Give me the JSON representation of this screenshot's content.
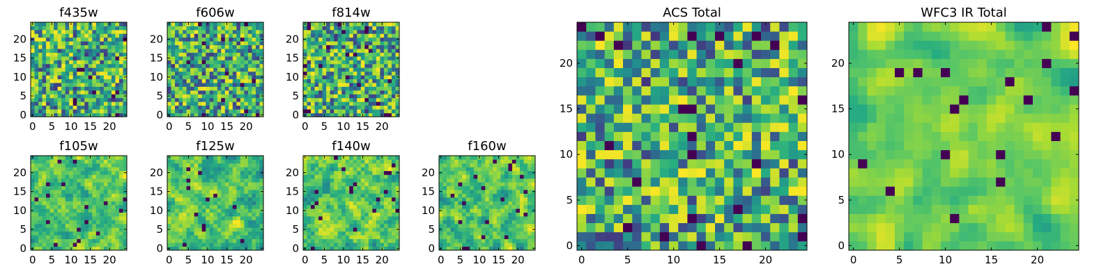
{
  "chart_data": [
    {
      "type": "heatmap",
      "title": "f435w",
      "grid_size": 25,
      "xticks": [
        0,
        5,
        10,
        15,
        20
      ],
      "yticks": [
        0,
        5,
        10,
        15,
        20
      ],
      "xlim": [
        -0.5,
        24.5
      ],
      "ylim": [
        -0.5,
        24.5
      ],
      "colormap": "viridis",
      "smoothness": 0,
      "seed": 11
    },
    {
      "type": "heatmap",
      "title": "f606w",
      "grid_size": 25,
      "xticks": [
        0,
        5,
        10,
        15,
        20
      ],
      "yticks": [
        0,
        5,
        10,
        15,
        20
      ],
      "xlim": [
        -0.5,
        24.5
      ],
      "ylim": [
        -0.5,
        24.5
      ],
      "colormap": "viridis",
      "smoothness": 0,
      "seed": 23
    },
    {
      "type": "heatmap",
      "title": "f814w",
      "grid_size": 25,
      "xticks": [
        0,
        5,
        10,
        15,
        20
      ],
      "yticks": [
        0,
        5,
        10,
        15,
        20
      ],
      "xlim": [
        -0.5,
        24.5
      ],
      "ylim": [
        -0.5,
        24.5
      ],
      "colormap": "viridis",
      "smoothness": 0,
      "seed": 37
    },
    {
      "type": "heatmap",
      "title": "f105w",
      "grid_size": 25,
      "xticks": [
        0,
        5,
        10,
        15,
        20
      ],
      "yticks": [
        0,
        5,
        10,
        15,
        20
      ],
      "xlim": [
        -0.5,
        24.5
      ],
      "ylim": [
        -0.5,
        24.5
      ],
      "colormap": "viridis",
      "smoothness": 1,
      "seed": 41
    },
    {
      "type": "heatmap",
      "title": "f125w",
      "grid_size": 25,
      "xticks": [
        0,
        5,
        10,
        15,
        20
      ],
      "yticks": [
        0,
        5,
        10,
        15,
        20
      ],
      "xlim": [
        -0.5,
        24.5
      ],
      "ylim": [
        -0.5,
        24.5
      ],
      "colormap": "viridis",
      "smoothness": 1,
      "seed": 53
    },
    {
      "type": "heatmap",
      "title": "f140w",
      "grid_size": 25,
      "xticks": [
        0,
        5,
        10,
        15,
        20
      ],
      "yticks": [
        0,
        5,
        10,
        15,
        20
      ],
      "xlim": [
        -0.5,
        24.5
      ],
      "ylim": [
        -0.5,
        24.5
      ],
      "colormap": "viridis",
      "smoothness": 1,
      "seed": 67
    },
    {
      "type": "heatmap",
      "title": "f160w",
      "grid_size": 25,
      "xticks": [
        0,
        5,
        10,
        15,
        20
      ],
      "yticks": [
        0,
        5,
        10,
        15,
        20
      ],
      "xlim": [
        -0.5,
        24.5
      ],
      "ylim": [
        -0.5,
        24.5
      ],
      "colormap": "viridis",
      "smoothness": 1,
      "seed": 79
    },
    {
      "type": "heatmap",
      "title": "ACS Total",
      "grid_size": 25,
      "xticks": [
        0,
        5,
        10,
        15,
        20
      ],
      "yticks": [
        0,
        5,
        10,
        15,
        20
      ],
      "xlim": [
        -0.5,
        24.5
      ],
      "ylim": [
        -0.5,
        24.5
      ],
      "colormap": "viridis",
      "smoothness": 0,
      "seed": 97
    },
    {
      "type": "heatmap",
      "title": "WFC3 IR Total",
      "grid_size": 25,
      "xticks": [
        0,
        5,
        10,
        15,
        20
      ],
      "yticks": [
        0,
        5,
        10,
        15,
        20
      ],
      "xlim": [
        -0.5,
        24.5
      ],
      "ylim": [
        -0.5,
        24.5
      ],
      "colormap": "viridis",
      "smoothness": 2,
      "seed": 113
    }
  ]
}
